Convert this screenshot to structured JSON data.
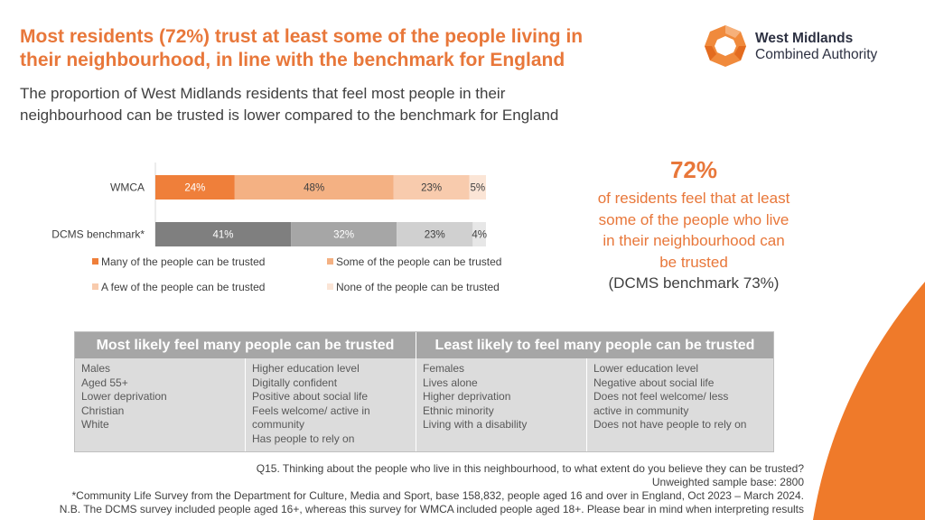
{
  "header": {
    "title_line1": "Most residents (72%) trust at least some of the people living in",
    "title_line2": "their neighbourhood, in line with the benchmark for England",
    "subtitle_line1": "The proportion of West Midlands residents that feel most people in their",
    "subtitle_line2": "neighbourhood can be trusted is lower compared to the benchmark for England"
  },
  "logo": {
    "line1": "West Midlands",
    "line2": "Combined Authority"
  },
  "colors": {
    "accent": "#e8773a",
    "wmca_series": [
      "#ef7f3a",
      "#f4b183",
      "#f8cbad",
      "#fbe5d6"
    ],
    "dcms_series": [
      "#7f7f7f",
      "#a6a6a6",
      "#d0d0d0",
      "#e7e7e7"
    ]
  },
  "chart_data": {
    "type": "bar",
    "orientation": "horizontal",
    "stacked": true,
    "categories": [
      "WMCA",
      "DCMS benchmark*"
    ],
    "series": [
      {
        "name": "Many of the people can be trusted",
        "values": [
          24,
          41
        ]
      },
      {
        "name": "Some of the people can be trusted",
        "values": [
          48,
          32
        ]
      },
      {
        "name": "A few of the people can be trusted",
        "values": [
          23,
          23
        ]
      },
      {
        "name": "None of the people can be trusted",
        "values": [
          5,
          4
        ]
      }
    ],
    "xlim": [
      0,
      100
    ],
    "grid": false,
    "legend": "bottom"
  },
  "highlight": {
    "value": "72%",
    "lines": [
      "of residents feel that at least",
      "some of the people who live",
      "in their neighbourhood can",
      "be trusted"
    ],
    "benchmark": "(DCMS benchmark 73%)"
  },
  "table": {
    "left_header": "Most likely feel many people can be trusted",
    "right_header": "Least likely to feel many people can be trusted",
    "columns": [
      [
        "Males",
        "Aged 55+",
        "Lower deprivation",
        "Christian",
        "White"
      ],
      [
        "Higher education level",
        "Digitally confident",
        "Positive about social life",
        "Feels welcome/ active in",
        "community",
        "Has people to rely on"
      ],
      [
        "Females",
        "Lives alone",
        "Higher deprivation",
        "Ethnic minority",
        "Living with a disability"
      ],
      [
        "Lower education level",
        "Negative about social life",
        "Does not feel welcome/ less",
        "active in community",
        "Does not have people to rely on"
      ]
    ]
  },
  "footer": {
    "question": "Q15. Thinking about the people who live in this neighbourhood, to what extent do you believe they can be trusted?",
    "sample": "Unweighted sample base: 2800",
    "source": "*Community Life Survey from the Department for Culture, Media and Sport, base 158,832, people aged 16 and over in England, Oct 2023 – March 2024.",
    "note": "N.B. The DCMS survey included people aged 16+, whereas this survey for WMCA included people aged 18+. Please bear in mind when interpreting results"
  }
}
